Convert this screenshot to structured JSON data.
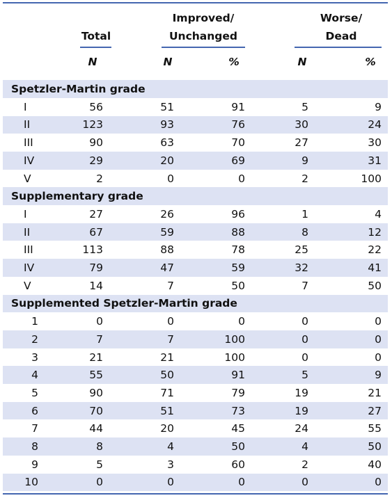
{
  "header": {
    "total": "Total",
    "improved": [
      "Improved/",
      "Unchanged"
    ],
    "worse": [
      "Worse/",
      "Dead"
    ],
    "subheads": [
      "N",
      "N",
      "%",
      "N",
      "%"
    ]
  },
  "sections": [
    {
      "title": "Spetzler-Martin grade",
      "rows": [
        [
          "I",
          56,
          51,
          91,
          5,
          9
        ],
        [
          "II",
          123,
          93,
          76,
          30,
          24
        ],
        [
          "III",
          90,
          63,
          70,
          27,
          30
        ],
        [
          "IV",
          29,
          20,
          69,
          9,
          31
        ],
        [
          "V",
          2,
          0,
          0,
          2,
          100
        ]
      ]
    },
    {
      "title": "Supplementary grade",
      "rows": [
        [
          "I",
          27,
          26,
          96,
          1,
          4
        ],
        [
          "II",
          67,
          59,
          88,
          8,
          12
        ],
        [
          "III",
          113,
          88,
          78,
          25,
          22
        ],
        [
          "IV",
          79,
          47,
          59,
          32,
          41
        ],
        [
          "V",
          14,
          7,
          50,
          7,
          50
        ]
      ]
    },
    {
      "title": "Supplemented Spetzler-Martin grade",
      "rows": [
        [
          "1",
          0,
          0,
          0,
          0,
          0
        ],
        [
          "2",
          7,
          7,
          100,
          0,
          0
        ],
        [
          "3",
          21,
          21,
          100,
          0,
          0
        ],
        [
          "4",
          55,
          50,
          91,
          5,
          9
        ],
        [
          "5",
          90,
          71,
          79,
          19,
          21
        ],
        [
          "6",
          70,
          51,
          73,
          19,
          27
        ],
        [
          "7",
          44,
          20,
          45,
          24,
          55
        ],
        [
          "8",
          8,
          4,
          50,
          4,
          50
        ],
        [
          "9",
          5,
          3,
          60,
          2,
          40
        ],
        [
          "10",
          0,
          0,
          0,
          0,
          0
        ]
      ]
    }
  ]
}
